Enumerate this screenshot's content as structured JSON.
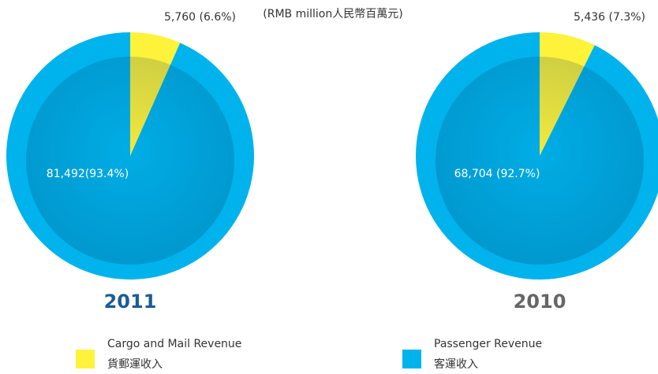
{
  "subtitle": "(RMB million人民幣百萬元)",
  "chart_data": [
    {
      "type": "pie",
      "title": "2011",
      "title_color": "#1b5c98",
      "categories": [
        "Cargo and Mail Revenue",
        "Passenger Revenue"
      ],
      "values": [
        5760,
        81492
      ],
      "value_labels": [
        "5,760 (6.6%)",
        "81,492(93.4%)"
      ],
      "colors": [
        "#fff23a",
        "#00b3ec"
      ]
    },
    {
      "type": "pie",
      "title": "2010",
      "title_color": "#666666",
      "categories": [
        "Cargo and Mail Revenue",
        "Passenger Revenue"
      ],
      "values": [
        5436,
        68704
      ],
      "value_labels": [
        "5,436 (7.3%)",
        "68,704 (92.7%)"
      ],
      "colors": [
        "#fff23a",
        "#00b3ec"
      ]
    }
  ],
  "legend": [
    {
      "label": "Cargo and Mail Revenue",
      "label_zh": "貨郵運收入",
      "color": "#fff23a"
    },
    {
      "label": "Passenger Revenue",
      "label_zh": "客運收入",
      "color": "#00b3ec"
    }
  ]
}
